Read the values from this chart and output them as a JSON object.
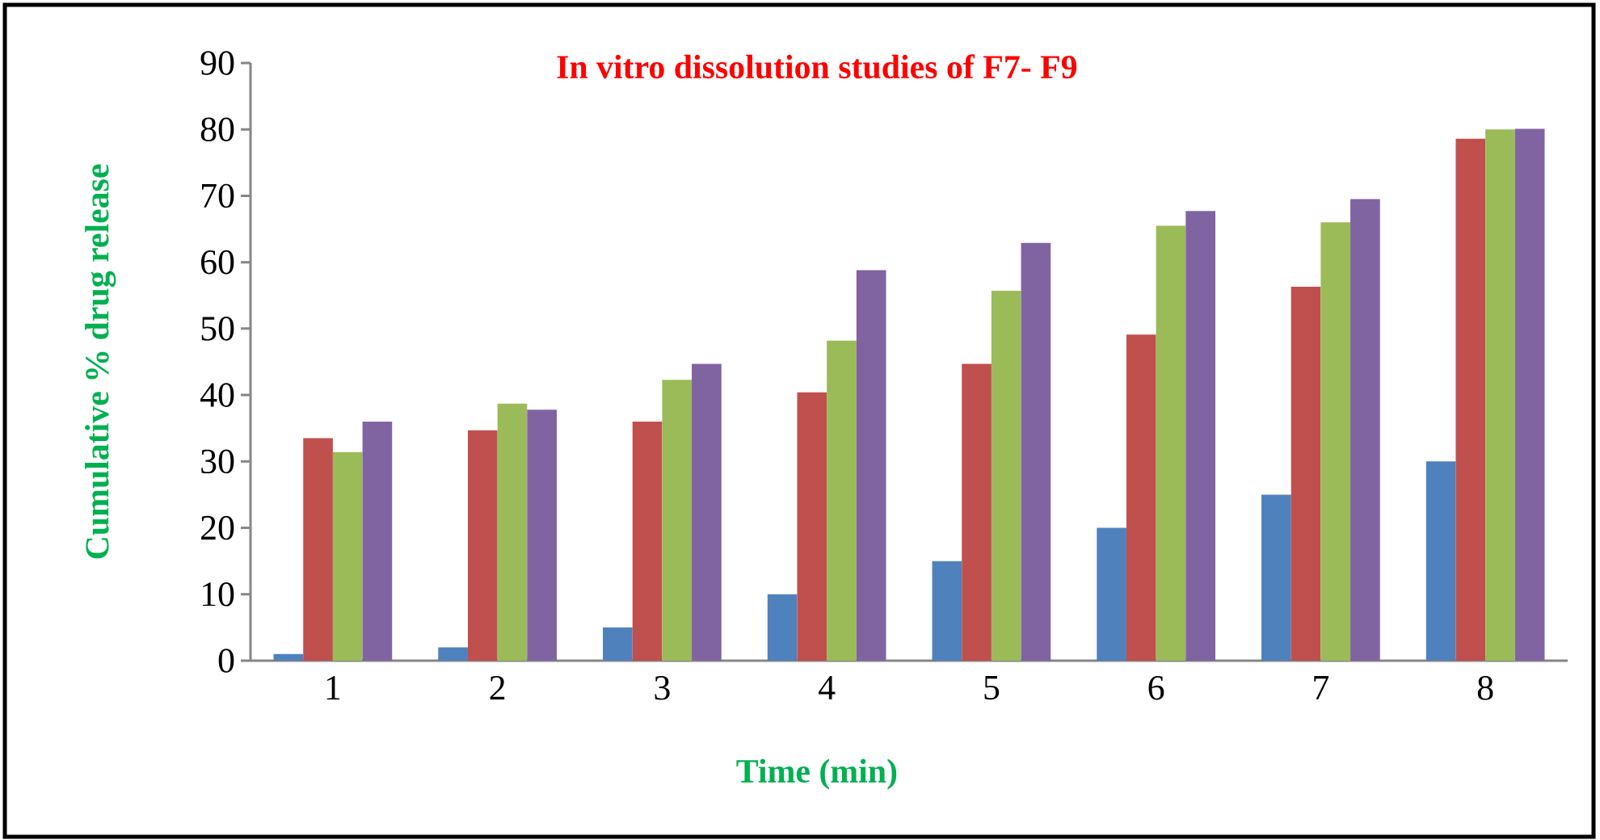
{
  "chart_data": {
    "type": "bar",
    "title": "In vitro dissolution studies of F7- F9",
    "xlabel": "Time (min)",
    "ylabel": "Cumulative % drug release",
    "categories": [
      "1",
      "2",
      "3",
      "4",
      "5",
      "6",
      "7",
      "8"
    ],
    "series": [
      {
        "color": "#4f81bd",
        "values": [
          1,
          2,
          5,
          10,
          15,
          20,
          25,
          30
        ]
      },
      {
        "color": "#c0504d",
        "values": [
          33.5,
          34.7,
          36,
          40.4,
          44.7,
          49.1,
          56.3,
          78.6
        ]
      },
      {
        "color": "#9bbb59",
        "values": [
          31.4,
          38.7,
          42.3,
          48.2,
          55.7,
          65.5,
          66,
          80
        ]
      },
      {
        "color": "#8064a2",
        "values": [
          36,
          37.8,
          44.7,
          58.8,
          62.9,
          67.7,
          69.5,
          80.1
        ]
      }
    ],
    "ylim": [
      0,
      90
    ],
    "yticks": [
      0,
      10,
      20,
      30,
      40,
      50,
      60,
      70,
      80,
      90
    ]
  }
}
